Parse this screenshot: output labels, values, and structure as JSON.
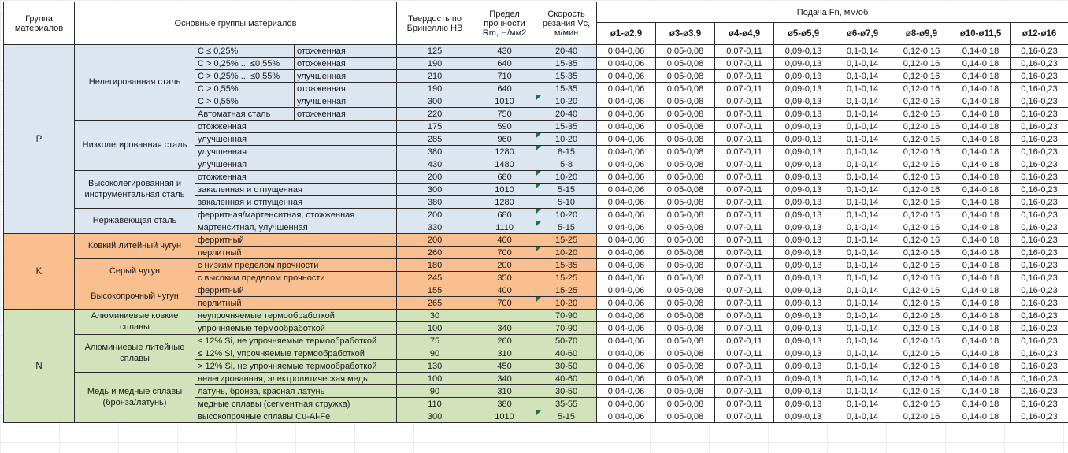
{
  "header": {
    "col_group": "Группа материалов",
    "col_main_groups": "Основные группы материалов",
    "col_hb": "Твердость по Бринеллю НВ",
    "col_rm": "Предел прочности Rm, Н/мм2",
    "col_vc": "Скорость резания Vc, м/мин",
    "col_feed": "Подача Fn, мм/об",
    "feed_columns": [
      "ø1-ø2,9",
      "ø3-ø3,9",
      "ø4-ø4,9",
      "ø5-ø5,9",
      "ø6-ø7,9",
      "ø8-ø9,9",
      "ø10-ø11,5",
      "ø12-ø16"
    ]
  },
  "feed_row": [
    "0,04-0,06",
    "0,05-0,08",
    "0,07-0,11",
    "0,09-0,13",
    "0,1-0,14",
    "0,12-0,16",
    "0,14-0,18",
    "0,16-0,23"
  ],
  "colors": {
    "P": "#DCE6F1",
    "K": "#FABF8F",
    "N": "#D2E3BC",
    "flag": "#1E7145"
  },
  "sections": [
    {
      "group": "P",
      "color": "#DCE6F1",
      "families": [
        {
          "name": "Нелегированная сталь",
          "rows": [
            {
              "sub1": "C ≤ 0,25%",
              "sub2": "отожженная",
              "hb": "125",
              "rm": "430",
              "vc": "20-40",
              "flag": false
            },
            {
              "sub1": "C > 0,25% ... ≤0,55%",
              "sub2": "отожженная",
              "hb": "190",
              "rm": "640",
              "vc": "15-35",
              "flag": false
            },
            {
              "sub1": "C > 0,25% ... ≤0,55%",
              "sub2": "улучшенная",
              "hb": "210",
              "rm": "710",
              "vc": "15-35",
              "flag": false
            },
            {
              "sub1": "C > 0,55%",
              "sub2": "отожженная",
              "hb": "190",
              "rm": "640",
              "vc": "15-35",
              "flag": false
            },
            {
              "sub1": "C > 0,55%",
              "sub2": "улучшенная",
              "hb": "300",
              "rm": "1010",
              "vc": "10-20",
              "flag": true
            },
            {
              "sub1": "Автоматная сталь",
              "sub2": "отожженная",
              "hb": "220",
              "rm": "750",
              "vc": "20-40",
              "flag": false
            }
          ]
        },
        {
          "name": "Низколегированная сталь",
          "rows": [
            {
              "sub": "отожженная",
              "hb": "175",
              "rm": "590",
              "vc": "15-35",
              "flag": false
            },
            {
              "sub": "улучшенная",
              "hb": "285",
              "rm": "960",
              "vc": "10-20",
              "flag": true
            },
            {
              "sub": "улучшенная",
              "hb": "380",
              "rm": "1280",
              "vc": "8-15",
              "flag": true
            },
            {
              "sub": "улучшенная",
              "hb": "430",
              "rm": "1480",
              "vc": "5-8",
              "flag": false
            }
          ]
        },
        {
          "name": "Высоколегированная и инструментальная сталь",
          "rows": [
            {
              "sub": "отожженная",
              "hb": "200",
              "rm": "680",
              "vc": "10-20",
              "flag": true
            },
            {
              "sub": "закаленная и отпущенная",
              "hb": "300",
              "rm": "1010",
              "vc": "5-15",
              "flag": true
            },
            {
              "sub": "закаленная и отпущенная",
              "hb": "380",
              "rm": "1280",
              "vc": "5-10",
              "flag": false
            }
          ]
        },
        {
          "name": "Нержавеющая сталь",
          "rows": [
            {
              "sub": "ферритная/мартенситная, отожженная",
              "hb": "200",
              "rm": "680",
              "vc": "10-20",
              "flag": true
            },
            {
              "sub": "мартенситная, улучшенная",
              "hb": "330",
              "rm": "1110",
              "vc": "5-15",
              "flag": true
            }
          ]
        }
      ]
    },
    {
      "group": "K",
      "color": "#FABF8F",
      "families": [
        {
          "name": "Ковкий литейный чугун",
          "rows": [
            {
              "sub": "ферритный",
              "hb": "200",
              "rm": "400",
              "vc": "15-25",
              "flag": false
            },
            {
              "sub": "перлитный",
              "hb": "260",
              "rm": "700",
              "vc": "10-20",
              "flag": true
            }
          ]
        },
        {
          "name": "Серый чугун",
          "rows": [
            {
              "sub": "с низким пределом прочности",
              "hb": "180",
              "rm": "200",
              "vc": "15-35",
              "flag": false
            },
            {
              "sub": "с высоким пределом прочности",
              "hb": "245",
              "rm": "350",
              "vc": "15-25",
              "flag": false
            }
          ]
        },
        {
          "name": "Высокопрочный чугун",
          "rows": [
            {
              "sub": "ферритный",
              "hb": "155",
              "rm": "400",
              "vc": "15-25",
              "flag": false
            },
            {
              "sub": "перлитный",
              "hb": "265",
              "rm": "700",
              "vc": "10-20",
              "flag": true
            }
          ]
        }
      ]
    },
    {
      "group": "N",
      "color": "#D2E3BC",
      "families": [
        {
          "name": "Алюминиевые ковкие сплавы",
          "rows": [
            {
              "sub": "неупрочняемые термообработкой",
              "hb": "30",
              "rm": "",
              "vc": "70-90",
              "flag": false
            },
            {
              "sub": "упрочняемые термообработкой",
              "hb": "100",
              "rm": "340",
              "vc": "70-90",
              "flag": false
            }
          ]
        },
        {
          "name": "Алюминиевые литейные сплавы",
          "rows": [
            {
              "sub": "≤ 12% Si, не упрочняемые термообработкой",
              "hb": "75",
              "rm": "260",
              "vc": "50-70",
              "flag": false
            },
            {
              "sub": "≤ 12% Si, упрочняемые термообработкой",
              "hb": "90",
              "rm": "310",
              "vc": "40-60",
              "flag": false
            },
            {
              "sub": "> 12% Si, не упрочняемые термообработкой",
              "hb": "130",
              "rm": "450",
              "vc": "30-50",
              "flag": false
            }
          ]
        },
        {
          "name": "Медь и медные сплавы (бронза/латунь)",
          "rows": [
            {
              "sub": "нелегированная, электролитическая медь",
              "hb": "100",
              "rm": "340",
              "vc": "40-60",
              "flag": false
            },
            {
              "sub": "латунь, бронза, красная латунь",
              "hb": "90",
              "rm": "310",
              "vc": "30-50",
              "flag": false
            },
            {
              "sub": "медные сплавы (сегментная стружка)",
              "hb": "110",
              "rm": "380",
              "vc": "35-55",
              "flag": false
            },
            {
              "sub": "высокопрочные сплавы Cu-Al-Fe",
              "hb": "300",
              "rm": "1010",
              "vc": "5-15",
              "flag": true
            }
          ]
        }
      ]
    }
  ]
}
